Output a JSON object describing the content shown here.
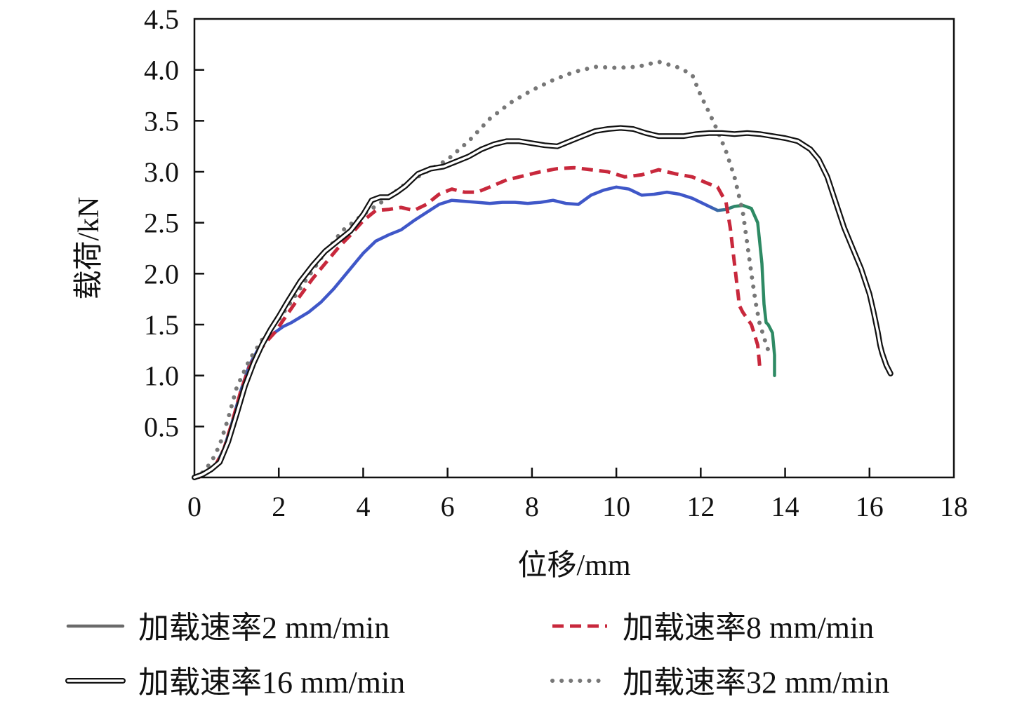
{
  "chart_data": {
    "type": "line",
    "title": "",
    "xlabel": "位移/mm",
    "ylabel": "载荷/kN",
    "xlim": [
      0,
      18
    ],
    "ylim": [
      0,
      4.5
    ],
    "xticks": [
      "0",
      "2",
      "4",
      "6",
      "8",
      "10",
      "12",
      "14",
      "16",
      "18"
    ],
    "yticks": [
      "0.5",
      "1.0",
      "1.5",
      "2.0",
      "2.5",
      "3.0",
      "3.5",
      "4.0",
      "4.5"
    ],
    "grid": false,
    "legend_position": "bottom",
    "series": [
      {
        "name": "加载速率2 mm/min",
        "style": "solid-gradient",
        "color": "#3f57c8",
        "color_end": "#2e8a64",
        "x": [
          0.1,
          0.3,
          0.5,
          0.7,
          0.9,
          1.1,
          1.3,
          1.5,
          1.7,
          1.9,
          2.1,
          2.3,
          2.5,
          2.7,
          3.0,
          3.3,
          3.6,
          4.0,
          4.3,
          4.6,
          4.9,
          5.2,
          5.5,
          5.8,
          6.1,
          6.4,
          6.7,
          7.0,
          7.3,
          7.6,
          7.9,
          8.2,
          8.5,
          8.8,
          9.1,
          9.4,
          9.7,
          10.0,
          10.3,
          10.6,
          10.9,
          11.2,
          11.5,
          11.8,
          12.1,
          12.4,
          12.6,
          12.8,
          13.0,
          13.2,
          13.35,
          13.45,
          13.5,
          13.55,
          13.6,
          13.7,
          13.75,
          13.75
        ],
        "y": [
          0.0,
          0.05,
          0.12,
          0.28,
          0.55,
          0.85,
          1.1,
          1.25,
          1.35,
          1.42,
          1.48,
          1.52,
          1.57,
          1.62,
          1.72,
          1.85,
          2.0,
          2.2,
          2.32,
          2.38,
          2.43,
          2.52,
          2.6,
          2.68,
          2.72,
          2.71,
          2.7,
          2.69,
          2.7,
          2.7,
          2.69,
          2.7,
          2.72,
          2.69,
          2.68,
          2.77,
          2.82,
          2.85,
          2.83,
          2.77,
          2.78,
          2.8,
          2.78,
          2.74,
          2.68,
          2.62,
          2.63,
          2.66,
          2.67,
          2.64,
          2.5,
          2.1,
          1.7,
          1.52,
          1.5,
          1.42,
          1.2,
          1.0
        ]
      },
      {
        "name": "加载速率8 mm/min",
        "style": "dashed",
        "color": "#c8283c",
        "x": [
          0.1,
          0.3,
          0.5,
          0.7,
          0.9,
          1.1,
          1.3,
          1.5,
          1.7,
          1.9,
          2.2,
          2.5,
          2.8,
          3.1,
          3.4,
          3.7,
          4.0,
          4.3,
          4.6,
          4.9,
          5.2,
          5.5,
          5.8,
          6.1,
          6.4,
          6.7,
          7.0,
          7.4,
          7.8,
          8.2,
          8.6,
          9.0,
          9.4,
          9.8,
          10.2,
          10.6,
          11.0,
          11.4,
          11.8,
          12.2,
          12.4,
          12.6,
          12.7,
          12.8,
          12.9,
          12.9,
          13.0,
          13.2,
          13.35,
          13.4
        ],
        "y": [
          0.0,
          0.05,
          0.12,
          0.28,
          0.55,
          0.85,
          1.08,
          1.22,
          1.33,
          1.42,
          1.6,
          1.78,
          1.95,
          2.1,
          2.25,
          2.38,
          2.52,
          2.62,
          2.63,
          2.65,
          2.62,
          2.68,
          2.78,
          2.83,
          2.8,
          2.8,
          2.85,
          2.92,
          2.96,
          3.0,
          3.03,
          3.04,
          3.02,
          3.0,
          2.95,
          2.97,
          3.02,
          2.98,
          2.95,
          2.88,
          2.85,
          2.7,
          2.45,
          2.1,
          1.75,
          1.7,
          1.62,
          1.5,
          1.3,
          1.08
        ]
      },
      {
        "name": "加载速率16 mm/min",
        "style": "double-line",
        "color": "#111111",
        "x": [
          0.0,
          0.2,
          0.4,
          0.6,
          0.8,
          1.0,
          1.2,
          1.4,
          1.6,
          1.8,
          2.0,
          2.2,
          2.5,
          2.8,
          3.1,
          3.4,
          3.7,
          4.0,
          4.2,
          4.4,
          4.6,
          4.8,
          5.0,
          5.3,
          5.6,
          5.9,
          6.2,
          6.5,
          6.8,
          7.1,
          7.4,
          7.7,
          8.0,
          8.3,
          8.6,
          8.9,
          9.2,
          9.5,
          9.8,
          10.1,
          10.4,
          10.7,
          11.0,
          11.3,
          11.6,
          11.9,
          12.2,
          12.5,
          12.8,
          13.1,
          13.4,
          13.7,
          14.0,
          14.3,
          14.6,
          14.8,
          15.0,
          15.2,
          15.4,
          15.6,
          15.8,
          16.0,
          16.1,
          16.2,
          16.25,
          16.3,
          16.4,
          16.5
        ],
        "y": [
          0.0,
          0.03,
          0.08,
          0.15,
          0.35,
          0.62,
          0.9,
          1.12,
          1.3,
          1.45,
          1.58,
          1.72,
          1.92,
          2.08,
          2.22,
          2.32,
          2.42,
          2.58,
          2.72,
          2.75,
          2.75,
          2.8,
          2.86,
          2.98,
          3.03,
          3.05,
          3.1,
          3.15,
          3.22,
          3.27,
          3.3,
          3.3,
          3.28,
          3.26,
          3.25,
          3.3,
          3.35,
          3.4,
          3.42,
          3.43,
          3.42,
          3.38,
          3.35,
          3.35,
          3.35,
          3.37,
          3.38,
          3.38,
          3.37,
          3.38,
          3.37,
          3.35,
          3.33,
          3.3,
          3.22,
          3.12,
          2.95,
          2.7,
          2.45,
          2.25,
          2.05,
          1.8,
          1.62,
          1.42,
          1.3,
          1.22,
          1.1,
          1.02
        ]
      },
      {
        "name": "加载速率32 mm/min",
        "style": "dotted",
        "color": "#777777",
        "x": [
          0.0,
          0.2,
          0.4,
          0.6,
          0.8,
          1.0,
          1.3,
          1.6,
          2.0,
          2.5,
          3.0,
          3.5,
          4.0,
          4.5,
          5.0,
          5.5,
          6.0,
          6.5,
          7.0,
          7.5,
          8.0,
          8.5,
          9.0,
          9.5,
          10.0,
          10.5,
          11.0,
          11.5,
          11.8,
          12.0,
          12.2,
          12.4,
          12.6,
          12.8,
          13.0,
          13.1,
          13.2,
          13.3,
          13.4,
          13.5,
          13.55,
          13.6,
          13.65
        ],
        "y": [
          0.0,
          0.05,
          0.15,
          0.32,
          0.58,
          0.88,
          1.15,
          1.35,
          1.55,
          1.85,
          2.15,
          2.42,
          2.58,
          2.72,
          2.88,
          3.0,
          3.12,
          3.3,
          3.52,
          3.68,
          3.8,
          3.9,
          3.98,
          4.03,
          4.02,
          4.03,
          4.08,
          4.02,
          3.95,
          3.75,
          3.58,
          3.4,
          3.2,
          2.95,
          2.6,
          2.3,
          2.0,
          1.72,
          1.5,
          1.38,
          1.3,
          1.25,
          1.18
        ]
      }
    ]
  }
}
